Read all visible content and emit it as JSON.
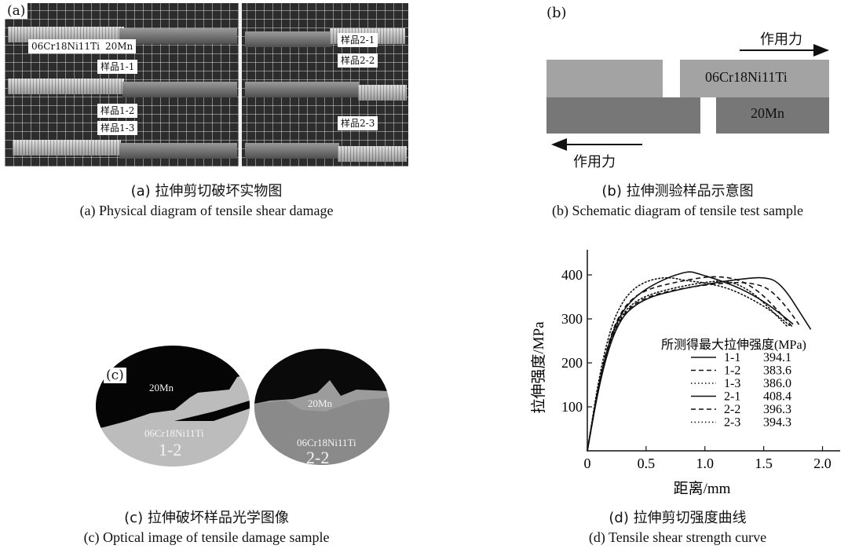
{
  "panel_a": {
    "letter": "(a)",
    "labels": {
      "steel": "06Cr18Ni11Ti",
      "mn": "20Mn",
      "s11": "样品1-1",
      "s12": "样品1-2",
      "s13": "样品1-3",
      "s21": "样品2-1",
      "s22": "样品2-2",
      "s23": "样品2-3"
    },
    "caption_cn": "(a) 拉伸剪切破坏实物图",
    "caption_en": "(a) Physical diagram of tensile shear damage"
  },
  "panel_b": {
    "letter": "(b)",
    "top_material": "06Cr18Ni11Ti",
    "bottom_material": "20Mn",
    "force_label": "作用力",
    "caption_cn": "(b) 拉伸测验样品示意图",
    "caption_en": "(b) Schematic diagram of tensile test sample",
    "colors": {
      "top": "#a3a3a3",
      "bottom": "#777777"
    }
  },
  "panel_c": {
    "letter": "(c)",
    "left": {
      "mn": "20Mn",
      "steel": "06Cr18Ni11Ti",
      "id": "1-2"
    },
    "right": {
      "mn": "20Mn",
      "steel": "06Cr18Ni11Ti",
      "id": "2-2"
    },
    "caption_cn": "(c) 拉伸破坏样品光学图像",
    "caption_en": "(c) Optical image of tensile damage sample"
  },
  "panel_d": {
    "caption_cn": "(d) 拉伸剪切强度曲线",
    "caption_en": "(d) Tensile shear strength curve"
  },
  "chart_data": {
    "type": "line",
    "title": "",
    "xlabel": "距离/mm",
    "ylabel": "拉伸强度/MPa",
    "xlim": [
      0,
      2.15
    ],
    "ylim": [
      0,
      450
    ],
    "xticks": [
      0,
      0.5,
      1.0,
      1.5,
      2.0
    ],
    "xtick_labels": [
      "0",
      "0.5",
      "1.0",
      "1.5",
      "2.0"
    ],
    "yticks": [
      100,
      200,
      300,
      400
    ],
    "ytick_labels": [
      "100",
      "200",
      "300",
      "400"
    ],
    "legend_title": "所测得最大拉伸强度(MPa)",
    "legend_position": "right",
    "series": [
      {
        "name": "1-1",
        "max_label": "394.1",
        "dash": "solid",
        "x": [
          0,
          0.1,
          0.2,
          0.3,
          0.4,
          0.5,
          0.6,
          0.8,
          1.0,
          1.2,
          1.4,
          1.5,
          1.6,
          1.7,
          1.8,
          1.9
        ],
        "y": [
          0,
          150,
          250,
          305,
          330,
          345,
          355,
          368,
          378,
          387,
          393,
          394,
          388,
          360,
          318,
          276
        ]
      },
      {
        "name": "1-2",
        "max_label": "383.6",
        "dash": "dashed",
        "x": [
          0,
          0.1,
          0.2,
          0.3,
          0.4,
          0.5,
          0.6,
          0.8,
          1.0,
          1.2,
          1.35,
          1.5,
          1.6,
          1.7,
          1.8
        ],
        "y": [
          0,
          152,
          253,
          308,
          334,
          348,
          357,
          369,
          377,
          382,
          383,
          375,
          355,
          325,
          287
        ]
      },
      {
        "name": "1-3",
        "max_label": "386.0",
        "dash": "dotted",
        "x": [
          0,
          0.1,
          0.2,
          0.3,
          0.4,
          0.5,
          0.6,
          0.8,
          1.0,
          1.1,
          1.2,
          1.3,
          1.4,
          1.5,
          1.6,
          1.7
        ],
        "y": [
          0,
          155,
          258,
          312,
          338,
          352,
          361,
          374,
          383,
          386,
          385,
          376,
          360,
          337,
          310,
          283
        ]
      },
      {
        "name": "2-1",
        "max_label": "408.4",
        "dash": "solid",
        "x": [
          0,
          0.1,
          0.2,
          0.3,
          0.4,
          0.5,
          0.6,
          0.7,
          0.8,
          0.88,
          0.95,
          1.1,
          1.3,
          1.5,
          1.65,
          1.75
        ],
        "y": [
          0,
          158,
          262,
          318,
          348,
          368,
          383,
          395,
          404,
          408,
          402,
          390,
          370,
          340,
          310,
          288
        ]
      },
      {
        "name": "2-2",
        "max_label": "396.3",
        "dash": "dashed",
        "x": [
          0,
          0.1,
          0.2,
          0.3,
          0.4,
          0.5,
          0.6,
          0.8,
          1.0,
          1.1,
          1.2,
          1.3,
          1.4,
          1.5,
          1.6,
          1.75
        ],
        "y": [
          0,
          160,
          266,
          322,
          350,
          365,
          374,
          386,
          395,
          396,
          394,
          387,
          373,
          352,
          325,
          280
        ]
      },
      {
        "name": "2-3",
        "max_label": "394.3",
        "dash": "dotted",
        "x": [
          0,
          0.1,
          0.2,
          0.3,
          0.4,
          0.5,
          0.6,
          0.68,
          0.75,
          0.8,
          0.9,
          1.0,
          1.2,
          1.4,
          1.6,
          1.72
        ],
        "y": [
          0,
          170,
          282,
          340,
          370,
          385,
          392,
          394,
          392,
          389,
          385,
          382,
          370,
          345,
          312,
          285
        ]
      }
    ]
  }
}
